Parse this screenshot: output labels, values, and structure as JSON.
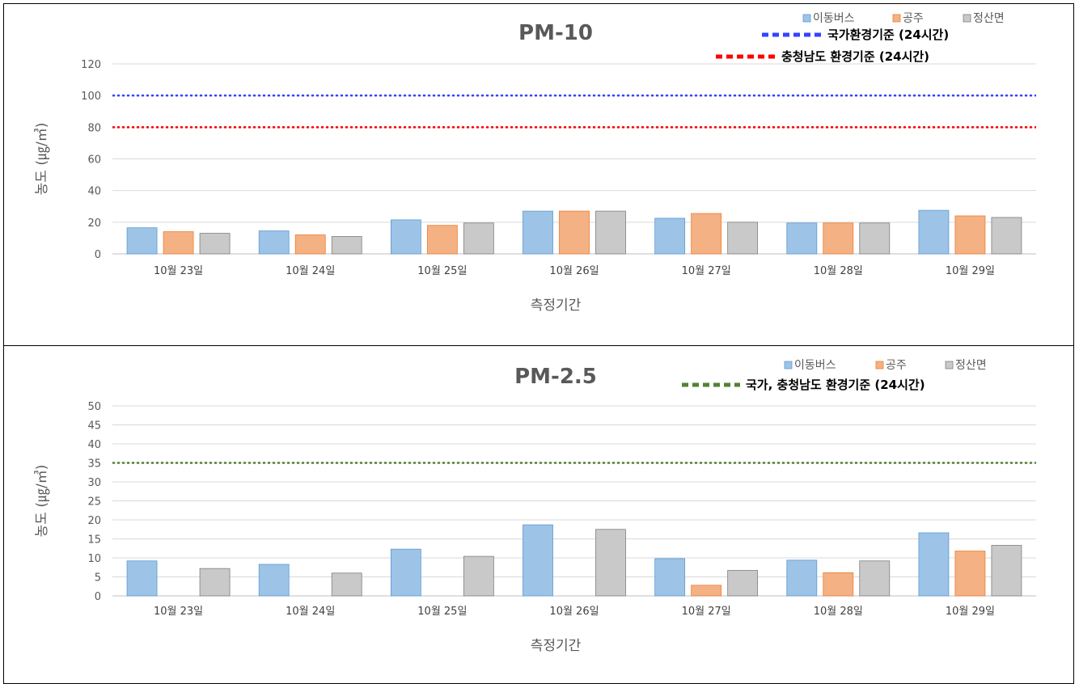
{
  "series_names": [
    "이동버스",
    "공주",
    "정산면"
  ],
  "colors": {
    "bus": "#9dc3e6",
    "bus_border": "#5b9bd5",
    "gongju": "#f4b183",
    "gongju_border": "#ed7d31",
    "jeongsan": "#c9c9c9",
    "jeongsan_border": "#7f7f7f",
    "national_line": "#3344ff",
    "chungnam_line": "#ff0000",
    "pm25_line": "#548235"
  },
  "chart_data": [
    {
      "type": "bar",
      "title": "PM-10",
      "xlabel": "측정기간",
      "ylabel": "농도 (㎍/㎥)",
      "ylim": [
        0,
        120
      ],
      "yticks": [
        0,
        20,
        40,
        60,
        80,
        100,
        120
      ],
      "grid": true,
      "legend_position": "top-right",
      "categories": [
        "10월 23일",
        "10월 24일",
        "10월 25일",
        "10월 26일",
        "10월 27일",
        "10월 28일",
        "10월 29일"
      ],
      "series": [
        {
          "name": "이동버스",
          "values": [
            16.5,
            14.5,
            21.5,
            27,
            22.5,
            19.5,
            27.5
          ]
        },
        {
          "name": "공주",
          "values": [
            14,
            12,
            18,
            27,
            25.5,
            19.5,
            24
          ]
        },
        {
          "name": "정산면",
          "values": [
            13,
            11,
            19.5,
            27,
            20,
            19.5,
            23
          ]
        }
      ],
      "reference_lines": [
        {
          "label": "국가환경기준 (24시간)",
          "value": 100,
          "color": "#3344ff"
        },
        {
          "label": "충청남도 환경기준 (24시간)",
          "value": 80,
          "color": "#ff0000"
        }
      ]
    },
    {
      "type": "bar",
      "title": "PM-2.5",
      "xlabel": "측정기간",
      "ylabel": "농도 (㎍/㎥)",
      "ylim": [
        0,
        50
      ],
      "yticks": [
        0,
        5,
        10,
        15,
        20,
        25,
        30,
        35,
        40,
        45,
        50
      ],
      "grid": true,
      "legend_position": "top-right",
      "categories": [
        "10월 23일",
        "10월 24일",
        "10월 25일",
        "10월 26일",
        "10월 27일",
        "10월 28일",
        "10월 29일"
      ],
      "series": [
        {
          "name": "이동버스",
          "values": [
            9.2,
            8.3,
            12.3,
            18.7,
            9.8,
            9.4,
            16.6
          ]
        },
        {
          "name": "공주",
          "values": [
            0,
            0,
            0,
            0,
            2.8,
            6.1,
            11.8
          ]
        },
        {
          "name": "정산면",
          "values": [
            7.2,
            6,
            10.4,
            17.5,
            6.7,
            9.2,
            13.3
          ]
        }
      ],
      "reference_lines": [
        {
          "label": "국가, 충청남도 환경기준 (24시간)",
          "value": 35,
          "color": "#548235"
        }
      ]
    }
  ]
}
